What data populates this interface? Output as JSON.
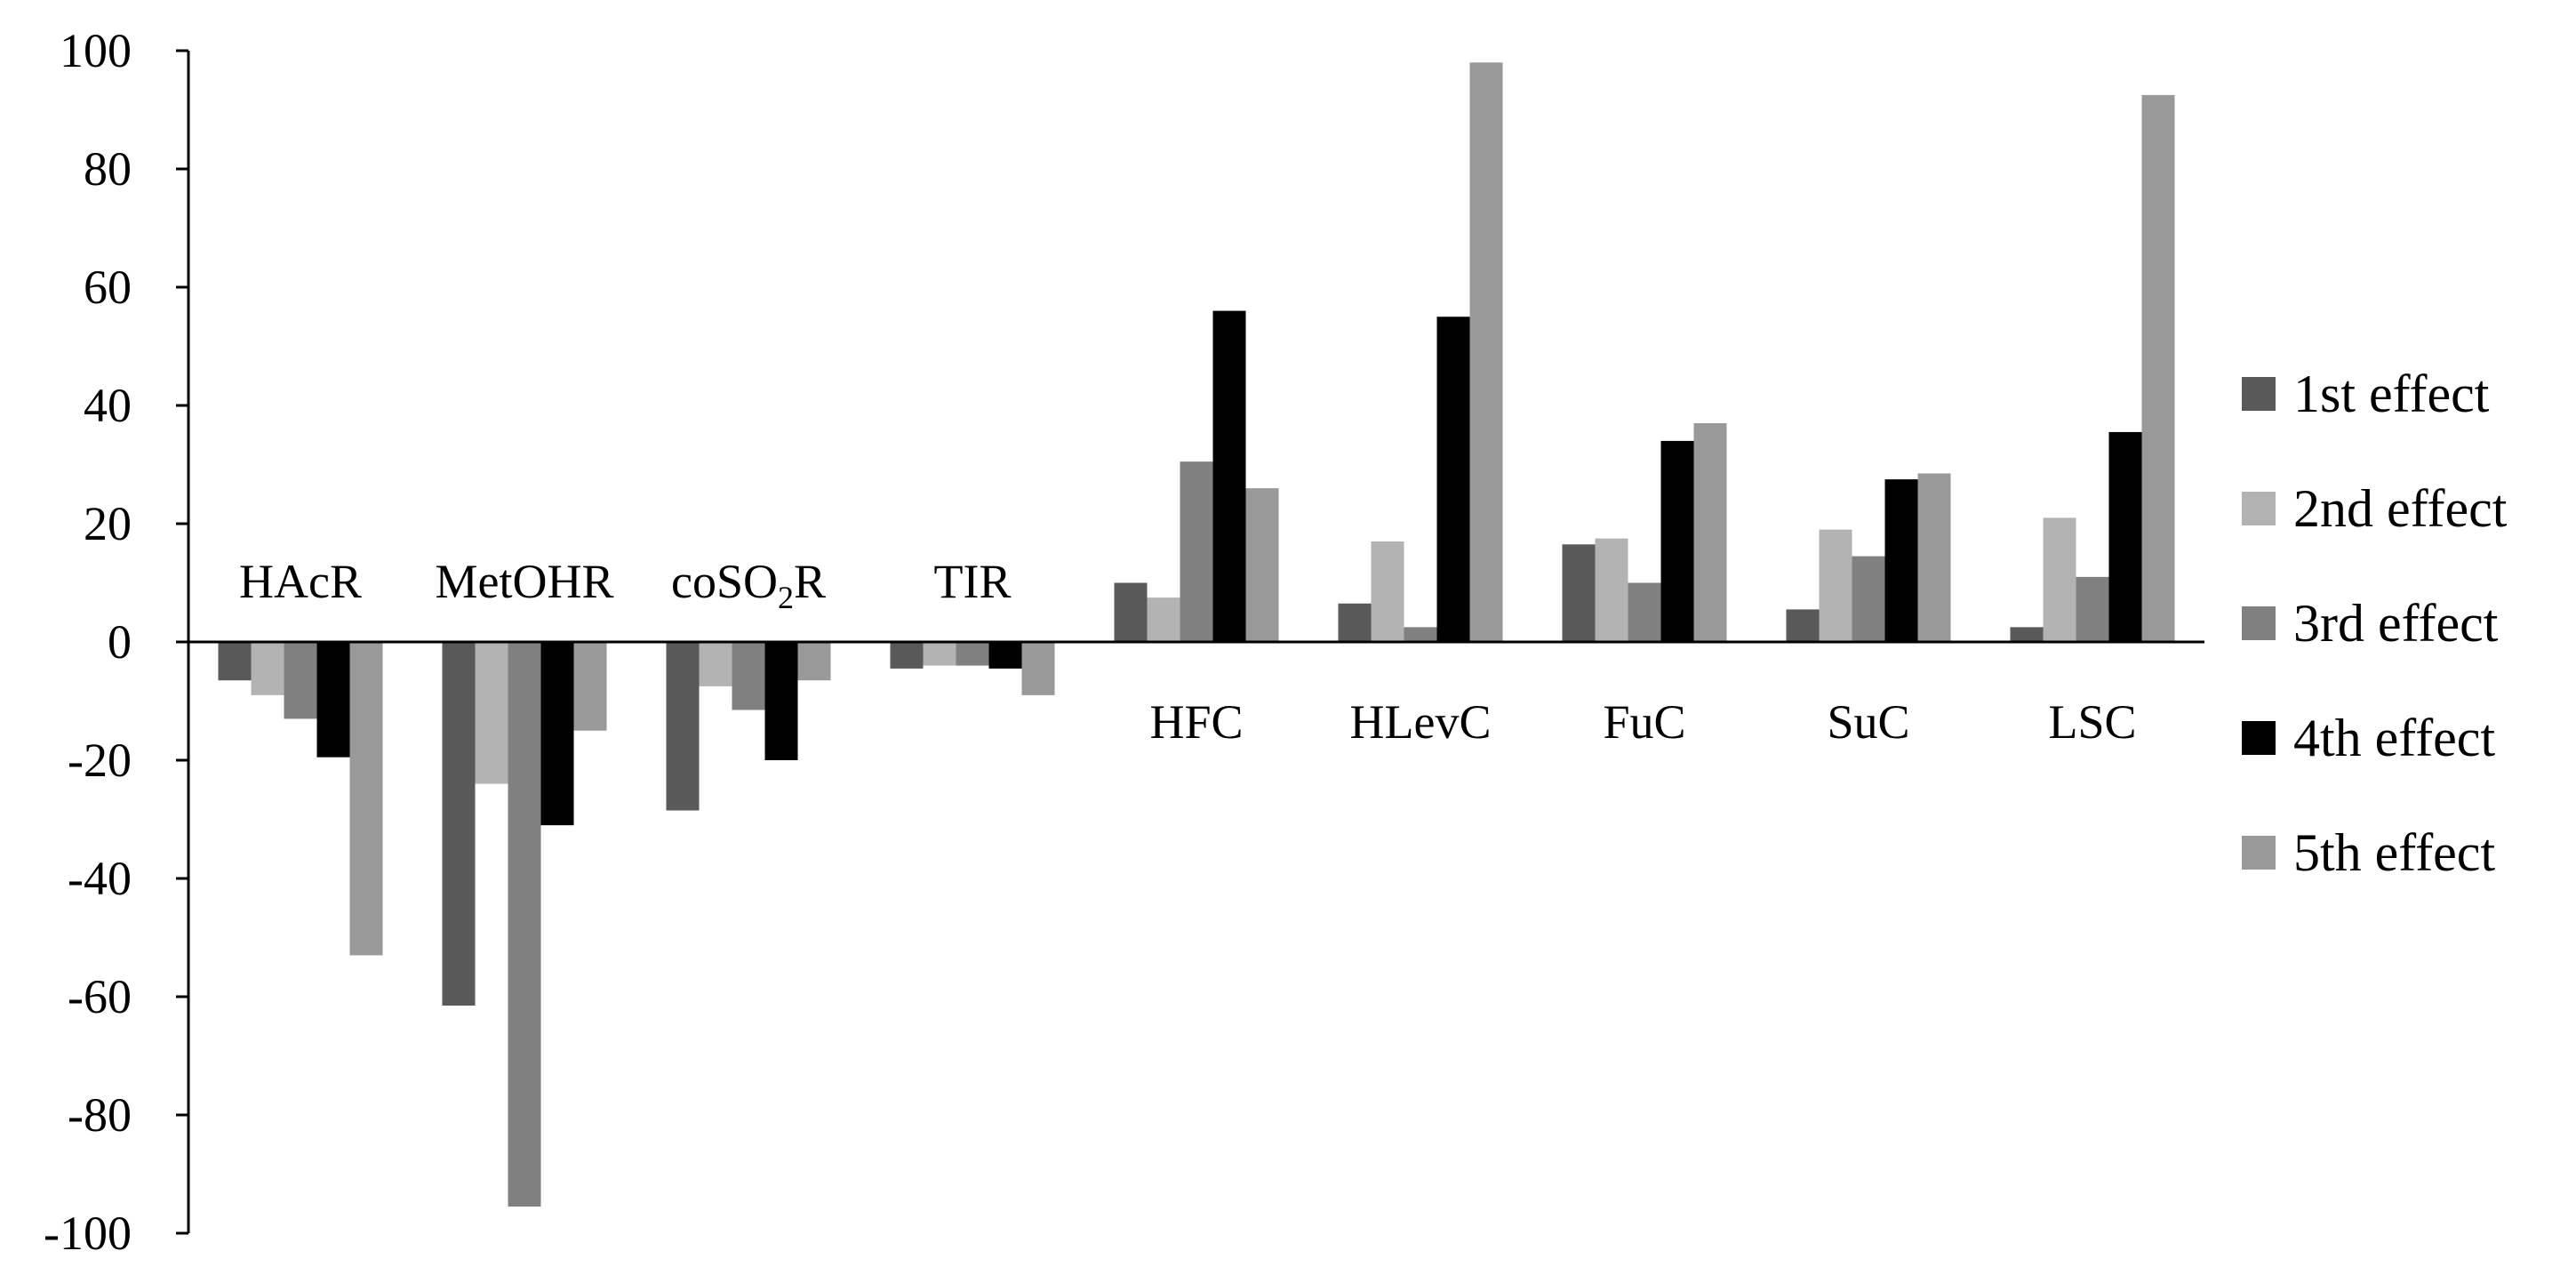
{
  "chart_data": {
    "type": "bar",
    "categories": [
      "HAcR",
      "MetOHR",
      "coSO2R",
      "TIR",
      "HFC",
      "HLevC",
      "FuC",
      "SuC",
      "LSC"
    ],
    "category_labels": [
      {
        "main": "HAcR",
        "sub": "",
        "after": ""
      },
      {
        "main": "MetOHR",
        "sub": "",
        "after": ""
      },
      {
        "main": "coSO",
        "sub": "2",
        "after": "R"
      },
      {
        "main": "TIR",
        "sub": "",
        "after": ""
      },
      {
        "main": "HFC",
        "sub": "",
        "after": ""
      },
      {
        "main": "HLevC",
        "sub": "",
        "after": ""
      },
      {
        "main": "FuC",
        "sub": "",
        "after": ""
      },
      {
        "main": "SuC",
        "sub": "",
        "after": ""
      },
      {
        "main": "LSC",
        "sub": "",
        "after": ""
      }
    ],
    "series": [
      {
        "name": "1st effect",
        "color": "#595959",
        "values": [
          -6.5,
          -61.5,
          -28.5,
          -4.5,
          10,
          6.5,
          16.5,
          5.5,
          2.5
        ]
      },
      {
        "name": "2nd effect",
        "color": "#b3b3b3",
        "values": [
          -9,
          -24,
          -7.5,
          -4,
          7.5,
          17,
          17.5,
          19,
          21
        ]
      },
      {
        "name": "3rd effect",
        "color": "#808080",
        "values": [
          -13,
          -95.5,
          -11.5,
          -4,
          30.5,
          2.5,
          10,
          14.5,
          11
        ]
      },
      {
        "name": "4th effect",
        "color": "#000000",
        "values": [
          -19.5,
          -31,
          -20,
          -4.5,
          56,
          55,
          34,
          27.5,
          35.5
        ]
      },
      {
        "name": "5th effect",
        "color": "#999999",
        "values": [
          -53,
          -15,
          -6.5,
          -9,
          26,
          98,
          37,
          28.5,
          92.5
        ]
      }
    ],
    "ylim": [
      -100,
      100
    ],
    "yticks": [
      "100",
      "80",
      "60",
      "40",
      "20",
      "0",
      "-20",
      "-40",
      "-60",
      "-80",
      "-100"
    ],
    "legend_position": "right",
    "grid": false,
    "title": "",
    "xlabel": "",
    "ylabel": ""
  }
}
